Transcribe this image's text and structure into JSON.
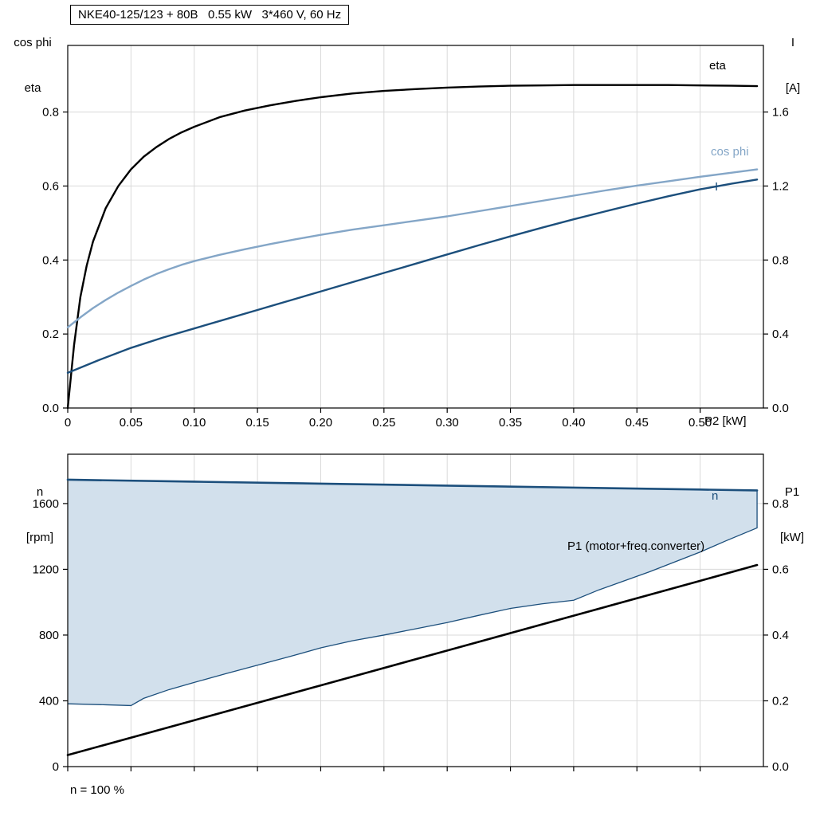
{
  "title_box": "NKE40-125/123 + 80B   0.55 kW   3*460 V, 60 Hz",
  "labels": {
    "top_left_1": "cos phi",
    "top_left_2": "eta",
    "top_right_1": "I",
    "top_right_2": "[A]",
    "bottom_left_1": "n",
    "bottom_left_2": "[rpm]",
    "bottom_right_1": "P1",
    "bottom_right_2": "[kW]",
    "x_axis_label": "P2 [kW]",
    "curve_eta": "eta",
    "curve_cosphi": "cos phi",
    "curve_current": "I",
    "curve_n": "n",
    "curve_p1": "P1 (motor+freq.converter)",
    "footnote": "n = 100 %"
  },
  "colors": {
    "black": "#000000",
    "dark_blue": "#1c4f7c",
    "light_blue": "#84a6c7",
    "fill_blue": "#d2e0ec",
    "grid": "#d9d9d9"
  },
  "chart_data": [
    {
      "type": "line",
      "name": "motor-electrical-curves",
      "title": "NKE40-125/123 + 80B 0.55 kW 3*460 V, 60 Hz",
      "x_axis": {
        "label": "P2 [kW]",
        "min": 0,
        "max": 0.55,
        "ticks": [
          0,
          0.05,
          0.1,
          0.15,
          0.2,
          0.25,
          0.3,
          0.35,
          0.4,
          0.45,
          0.5
        ],
        "tick_labels": [
          "0",
          "0.05",
          "0.10",
          "0.15",
          "0.20",
          "0.25",
          "0.30",
          "0.35",
          "0.40",
          "0.45",
          "0.50"
        ]
      },
      "y_left": {
        "label": "cos phi / eta",
        "min": 0,
        "max": 0.98,
        "ticks": [
          0,
          0.2,
          0.4,
          0.6,
          0.8
        ],
        "tick_labels": [
          "0.0",
          "0.2",
          "0.4",
          "0.6",
          "0.8"
        ]
      },
      "y_right": {
        "label": "I [A]",
        "min": 0,
        "max": 1.96,
        "ticks": [
          0,
          0.4,
          0.8,
          1.2,
          1.6
        ],
        "tick_labels": [
          "0.0",
          "0.4",
          "0.8",
          "1.2",
          "1.6"
        ]
      },
      "series": [
        {
          "name": "eta",
          "axis": "left",
          "color": "black",
          "width": 2.4,
          "points": [
            [
              0,
              0
            ],
            [
              0.005,
              0.17
            ],
            [
              0.01,
              0.3
            ],
            [
              0.015,
              0.385
            ],
            [
              0.02,
              0.45
            ],
            [
              0.03,
              0.54
            ],
            [
              0.04,
              0.6
            ],
            [
              0.05,
              0.645
            ],
            [
              0.06,
              0.679
            ],
            [
              0.07,
              0.705
            ],
            [
              0.08,
              0.727
            ],
            [
              0.09,
              0.745
            ],
            [
              0.1,
              0.76
            ],
            [
              0.12,
              0.786
            ],
            [
              0.14,
              0.804
            ],
            [
              0.16,
              0.818
            ],
            [
              0.18,
              0.83
            ],
            [
              0.2,
              0.84
            ],
            [
              0.225,
              0.85
            ],
            [
              0.25,
              0.857
            ],
            [
              0.275,
              0.862
            ],
            [
              0.3,
              0.866
            ],
            [
              0.325,
              0.869
            ],
            [
              0.35,
              0.871
            ],
            [
              0.375,
              0.872
            ],
            [
              0.4,
              0.873
            ],
            [
              0.425,
              0.873
            ],
            [
              0.45,
              0.873
            ],
            [
              0.475,
              0.873
            ],
            [
              0.5,
              0.872
            ],
            [
              0.525,
              0.871
            ],
            [
              0.545,
              0.87
            ]
          ]
        },
        {
          "name": "cos phi",
          "axis": "left",
          "color": "light_blue",
          "width": 2.4,
          "points": [
            [
              0,
              0.218
            ],
            [
              0.01,
              0.245
            ],
            [
              0.02,
              0.27
            ],
            [
              0.03,
              0.292
            ],
            [
              0.04,
              0.312
            ],
            [
              0.05,
              0.33
            ],
            [
              0.06,
              0.347
            ],
            [
              0.07,
              0.362
            ],
            [
              0.08,
              0.375
            ],
            [
              0.09,
              0.387
            ],
            [
              0.1,
              0.397
            ],
            [
              0.12,
              0.414
            ],
            [
              0.14,
              0.429
            ],
            [
              0.16,
              0.443
            ],
            [
              0.18,
              0.456
            ],
            [
              0.2,
              0.468
            ],
            [
              0.225,
              0.482
            ],
            [
              0.25,
              0.494
            ],
            [
              0.275,
              0.506
            ],
            [
              0.3,
              0.518
            ],
            [
              0.325,
              0.532
            ],
            [
              0.35,
              0.546
            ],
            [
              0.375,
              0.56
            ],
            [
              0.4,
              0.574
            ],
            [
              0.425,
              0.588
            ],
            [
              0.45,
              0.601
            ],
            [
              0.475,
              0.613
            ],
            [
              0.5,
              0.625
            ],
            [
              0.525,
              0.636
            ],
            [
              0.545,
              0.645
            ]
          ]
        },
        {
          "name": "I",
          "axis": "right",
          "color": "dark_blue",
          "width": 2.4,
          "points": [
            [
              0,
              0.19
            ],
            [
              0.025,
              0.26
            ],
            [
              0.05,
              0.325
            ],
            [
              0.075,
              0.38
            ],
            [
              0.1,
              0.43
            ],
            [
              0.125,
              0.48
            ],
            [
              0.15,
              0.53
            ],
            [
              0.175,
              0.58
            ],
            [
              0.2,
              0.63
            ],
            [
              0.225,
              0.68
            ],
            [
              0.25,
              0.73
            ],
            [
              0.275,
              0.78
            ],
            [
              0.3,
              0.83
            ],
            [
              0.325,
              0.88
            ],
            [
              0.35,
              0.928
            ],
            [
              0.375,
              0.975
            ],
            [
              0.4,
              1.02
            ],
            [
              0.425,
              1.063
            ],
            [
              0.45,
              1.105
            ],
            [
              0.475,
              1.145
            ],
            [
              0.5,
              1.182
            ],
            [
              0.525,
              1.213
            ],
            [
              0.545,
              1.235
            ]
          ]
        }
      ]
    },
    {
      "type": "line",
      "name": "speed-and-power-curves",
      "x_axis": {
        "label": "",
        "min": 0,
        "max": 0.55,
        "ticks": [
          0,
          0.05,
          0.1,
          0.15,
          0.2,
          0.25,
          0.3,
          0.35,
          0.4,
          0.45,
          0.5
        ],
        "tick_labels": []
      },
      "y_left": {
        "label": "n [rpm]",
        "min": 0,
        "max": 1900,
        "ticks": [
          0,
          400,
          800,
          1200,
          1600
        ],
        "tick_labels": [
          "0",
          "400",
          "800",
          "1200",
          "1600"
        ]
      },
      "y_right": {
        "label": "P1 [kW]",
        "min": 0,
        "max": 0.95,
        "ticks": [
          0,
          0.2,
          0.4,
          0.6,
          0.8
        ],
        "tick_labels": [
          "0.0",
          "0.2",
          "0.4",
          "0.6",
          "0.8"
        ]
      },
      "band": {
        "name": "speed-control-range",
        "color": "fill_blue",
        "edge_color": "dark_blue",
        "edge_width": 1.3,
        "upper": "n",
        "lower_points": [
          [
            0,
            382
          ],
          [
            0.03,
            376
          ],
          [
            0.05,
            371
          ],
          [
            0.06,
            415
          ],
          [
            0.08,
            468
          ],
          [
            0.1,
            512
          ],
          [
            0.125,
            565
          ],
          [
            0.15,
            617
          ],
          [
            0.175,
            668
          ],
          [
            0.2,
            722
          ],
          [
            0.225,
            765
          ],
          [
            0.25,
            800
          ],
          [
            0.275,
            838
          ],
          [
            0.3,
            876
          ],
          [
            0.325,
            920
          ],
          [
            0.35,
            962
          ],
          [
            0.375,
            990
          ],
          [
            0.4,
            1012
          ],
          [
            0.42,
            1075
          ],
          [
            0.44,
            1130
          ],
          [
            0.46,
            1185
          ],
          [
            0.48,
            1245
          ],
          [
            0.5,
            1305
          ],
          [
            0.52,
            1372
          ],
          [
            0.545,
            1452
          ]
        ]
      },
      "series": [
        {
          "name": "n",
          "axis": "left",
          "color": "dark_blue",
          "width": 2.6,
          "points": [
            [
              0,
              1745
            ],
            [
              0.1,
              1733
            ],
            [
              0.2,
              1721
            ],
            [
              0.3,
              1709
            ],
            [
              0.4,
              1697
            ],
            [
              0.5,
              1685
            ],
            [
              0.545,
              1680
            ]
          ]
        },
        {
          "name": "P1 (motor+freq.converter)",
          "axis": "right",
          "color": "black",
          "width": 2.6,
          "points": [
            [
              0,
              0.035
            ],
            [
              0.1,
              0.141
            ],
            [
              0.2,
              0.247
            ],
            [
              0.3,
              0.353
            ],
            [
              0.4,
              0.459
            ],
            [
              0.5,
              0.565
            ],
            [
              0.545,
              0.613
            ]
          ]
        }
      ]
    }
  ]
}
